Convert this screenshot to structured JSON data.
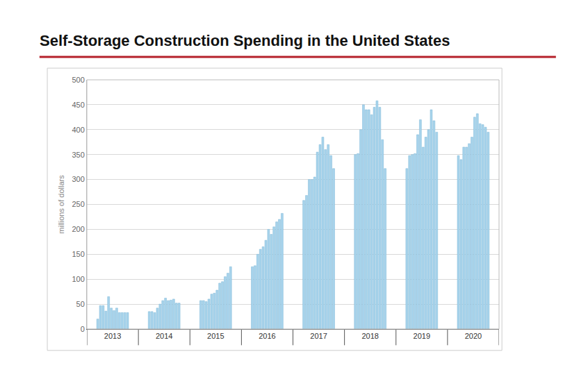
{
  "chart_data": {
    "type": "bar",
    "title": "Self-Storage Construction Spending in the United States",
    "y_label": "millions of dollars",
    "x": [
      "2013",
      "2013",
      "2013",
      "2013",
      "2013",
      "2013",
      "2013",
      "2013",
      "2013",
      "2013",
      "2013",
      "2013",
      "2014",
      "2014",
      "2014",
      "2014",
      "2014",
      "2014",
      "2014",
      "2014",
      "2014",
      "2014",
      "2014",
      "2014",
      "2015",
      "2015",
      "2015",
      "2015",
      "2015",
      "2015",
      "2015",
      "2015",
      "2015",
      "2015",
      "2015",
      "2015",
      "2016",
      "2016",
      "2016",
      "2016",
      "2016",
      "2016",
      "2016",
      "2016",
      "2016",
      "2016",
      "2016",
      "2016",
      "2017",
      "2017",
      "2017",
      "2017",
      "2017",
      "2017",
      "2017",
      "2017",
      "2017",
      "2017",
      "2017",
      "2017",
      "2018",
      "2018",
      "2018",
      "2018",
      "2018",
      "2018",
      "2018",
      "2018",
      "2018",
      "2018",
      "2018",
      "2018",
      "2019",
      "2019",
      "2019",
      "2019",
      "2019",
      "2019",
      "2019",
      "2019",
      "2019",
      "2019",
      "2019",
      "2019",
      "2020",
      "2020",
      "2020",
      "2020",
      "2020",
      "2020",
      "2020",
      "2020",
      "2020",
      "2020",
      "2020",
      "2020"
    ],
    "values": [
      20,
      47,
      47,
      36,
      65,
      42,
      37,
      42,
      33,
      33,
      33,
      33,
      35,
      35,
      33,
      42,
      50,
      57,
      62,
      57,
      58,
      60,
      52,
      52,
      57,
      57,
      55,
      60,
      70,
      72,
      78,
      92,
      95,
      105,
      112,
      125,
      125,
      127,
      150,
      160,
      165,
      178,
      200,
      190,
      205,
      215,
      220,
      232,
      258,
      268,
      300,
      300,
      305,
      355,
      370,
      385,
      360,
      370,
      348,
      322,
      350,
      352,
      400,
      450,
      440,
      440,
      430,
      445,
      458,
      445,
      380,
      322,
      322,
      348,
      350,
      352,
      390,
      420,
      365,
      385,
      400,
      440,
      418,
      395,
      348,
      340,
      365,
      365,
      372,
      385,
      425,
      432,
      412,
      410,
      405,
      395
    ],
    "color": "#a8d4ec",
    "ylim": [
      0,
      500
    ],
    "yticks": [
      0,
      50,
      100,
      150,
      200,
      250,
      300,
      350,
      400,
      450,
      500
    ],
    "grid": true
  }
}
